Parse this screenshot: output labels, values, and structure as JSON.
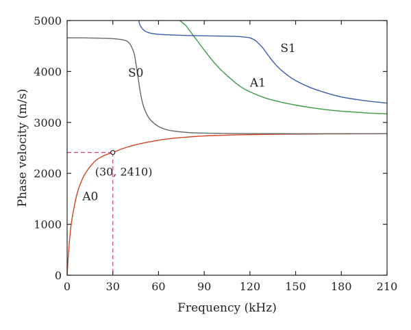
{
  "chart_data": {
    "type": "line",
    "xlabel": "Frequency (kHz)",
    "ylabel": "Phase velocity (m/s)",
    "xlim": [
      0,
      210
    ],
    "ylim": [
      0,
      5000
    ],
    "xticks": [
      0,
      30,
      60,
      90,
      120,
      150,
      180,
      210
    ],
    "yticks": [
      0,
      1000,
      2000,
      3000,
      4000,
      5000
    ],
    "grid": false,
    "series": [
      {
        "name": "A0",
        "color": "#d2441f",
        "x": [
          0,
          1,
          2,
          3,
          5,
          7,
          10,
          12,
          15,
          18,
          20,
          25,
          30,
          35,
          40,
          45,
          50,
          60,
          70,
          80,
          90,
          100,
          110,
          120,
          130,
          140,
          150,
          160,
          170,
          180,
          190,
          200,
          210
        ],
        "y": [
          0,
          480,
          820,
          1070,
          1400,
          1650,
          1890,
          2000,
          2130,
          2230,
          2280,
          2360,
          2410,
          2470,
          2520,
          2560,
          2595,
          2650,
          2690,
          2715,
          2735,
          2745,
          2755,
          2760,
          2765,
          2768,
          2770,
          2772,
          2774,
          2775,
          2776,
          2777,
          2778
        ]
      },
      {
        "name": "S0",
        "color": "#666666",
        "x": [
          0,
          10,
          20,
          30,
          35,
          38,
          40,
          42,
          44,
          46,
          48,
          50,
          53,
          56,
          60,
          65,
          70,
          80,
          90,
          100,
          110,
          120,
          140,
          160,
          180,
          200,
          210
        ],
        "y": [
          4660,
          4660,
          4655,
          4645,
          4630,
          4610,
          4580,
          4500,
          4350,
          4000,
          3600,
          3330,
          3120,
          3010,
          2920,
          2860,
          2830,
          2800,
          2790,
          2785,
          2782,
          2780,
          2779,
          2778,
          2778,
          2778,
          2778
        ]
      },
      {
        "name": "A1",
        "color": "#3b9a45",
        "x": [
          74,
          76,
          78,
          80,
          83,
          86,
          90,
          95,
          100,
          105,
          110,
          115,
          120,
          130,
          140,
          150,
          160,
          170,
          180,
          190,
          200,
          210
        ],
        "y": [
          5000,
          4950,
          4900,
          4820,
          4700,
          4580,
          4420,
          4230,
          4060,
          3920,
          3790,
          3680,
          3600,
          3480,
          3400,
          3340,
          3290,
          3250,
          3220,
          3200,
          3180,
          3170
        ]
      },
      {
        "name": "S1",
        "color": "#3a5bb0",
        "x": [
          47,
          48,
          50,
          52,
          55,
          60,
          70,
          80,
          90,
          100,
          110,
          115,
          120,
          123,
          125,
          128,
          130,
          135,
          140,
          145,
          150,
          160,
          170,
          180,
          190,
          200,
          210
        ],
        "y": [
          5000,
          4900,
          4820,
          4780,
          4750,
          4730,
          4715,
          4705,
          4700,
          4695,
          4690,
          4680,
          4660,
          4620,
          4570,
          4480,
          4400,
          4200,
          4040,
          3920,
          3820,
          3680,
          3580,
          3500,
          3450,
          3410,
          3380
        ]
      }
    ],
    "series_labels": [
      {
        "text": "A0",
        "x": 10,
        "y": 1470
      },
      {
        "text": "S0",
        "x": 40,
        "y": 3900
      },
      {
        "text": "A1",
        "x": 120,
        "y": 3700
      },
      {
        "text": "S1",
        "x": 140,
        "y": 4380
      }
    ],
    "annotation": {
      "point": {
        "x": 30,
        "y": 2410
      },
      "label": "(30, 2410)",
      "color": "#d44f8a"
    }
  }
}
